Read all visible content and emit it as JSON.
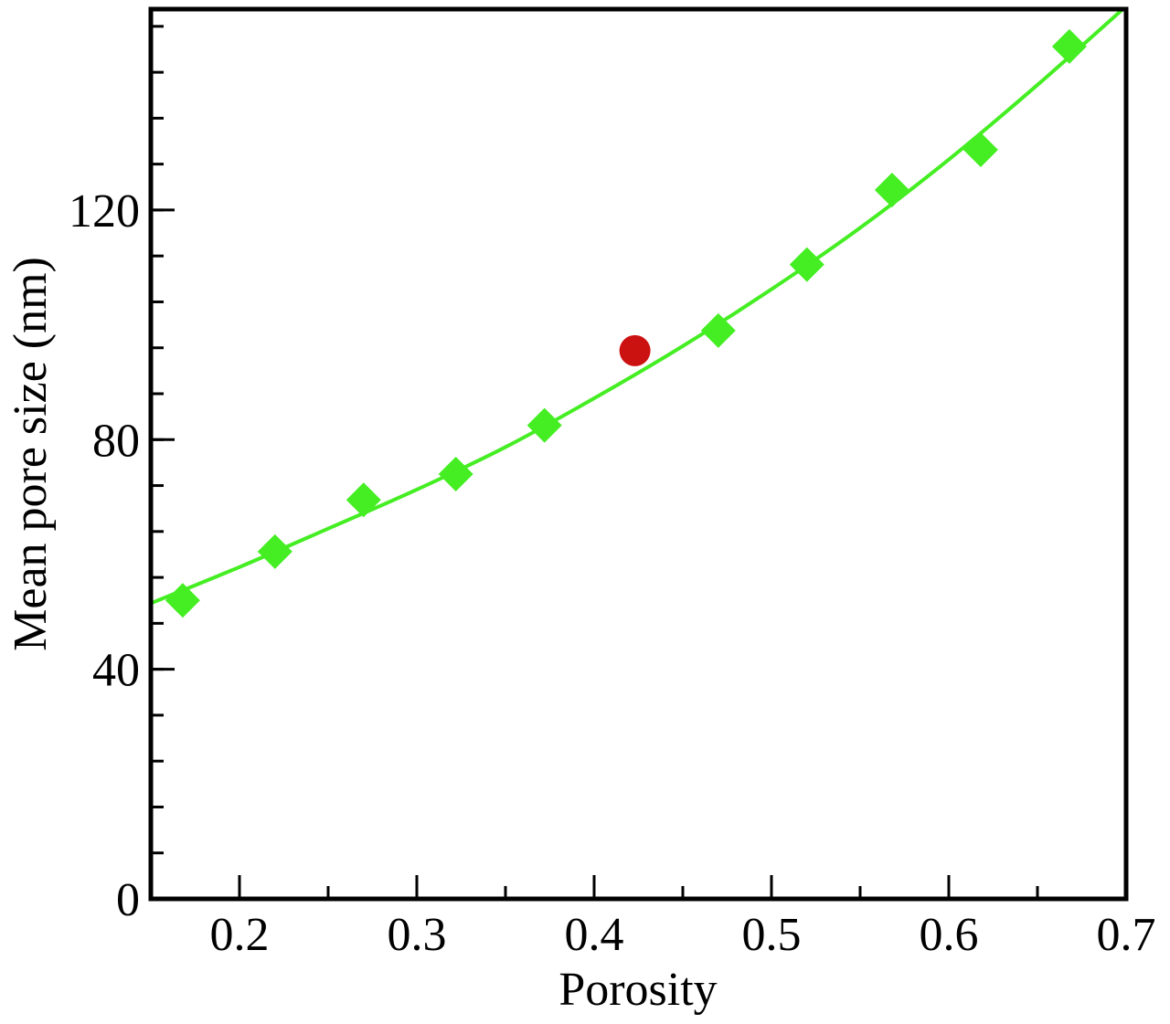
{
  "chart_data": {
    "type": "scatter",
    "xlabel": "Porosity",
    "ylabel": "Mean pore size (nm)",
    "xlim": [
      0.15,
      0.7
    ],
    "ylim": [
      0,
      155
    ],
    "x_ticks": [
      0.2,
      0.3,
      0.4,
      0.5,
      0.6,
      0.7
    ],
    "x_tick_labels": [
      "0.2",
      "0.3",
      "0.4",
      "0.5",
      "0.6",
      "0.7"
    ],
    "y_ticks": [
      0,
      40,
      80,
      120
    ],
    "y_tick_labels": [
      "0",
      "40",
      "80",
      "120"
    ],
    "x_minor_step": 0.05,
    "y_minor_step": 8,
    "grid": false,
    "series": [
      {
        "marker": "diamond",
        "color": "#44ee22",
        "x": [
          0.168,
          0.22,
          0.27,
          0.322,
          0.372,
          0.47,
          0.52,
          0.568,
          0.618,
          0.668
        ],
        "y": [
          52,
          60.5,
          69.5,
          74,
          82.5,
          99,
          110.5,
          123.5,
          130.5,
          148.5
        ]
      },
      {
        "marker": "circle",
        "color": "#cc1111",
        "x": [
          0.423
        ],
        "y": [
          95.5
        ]
      },
      {
        "marker": "line",
        "color": "#44ee22",
        "x": [
          0.15,
          0.2,
          0.25,
          0.3,
          0.35,
          0.4,
          0.45,
          0.5,
          0.55,
          0.6,
          0.65,
          0.7
        ],
        "y": [
          51.5,
          57.8,
          64.5,
          71.3,
          78.7,
          87.2,
          96.3,
          106.2,
          116.9,
          128.8,
          141.8,
          155.5
        ]
      }
    ]
  }
}
